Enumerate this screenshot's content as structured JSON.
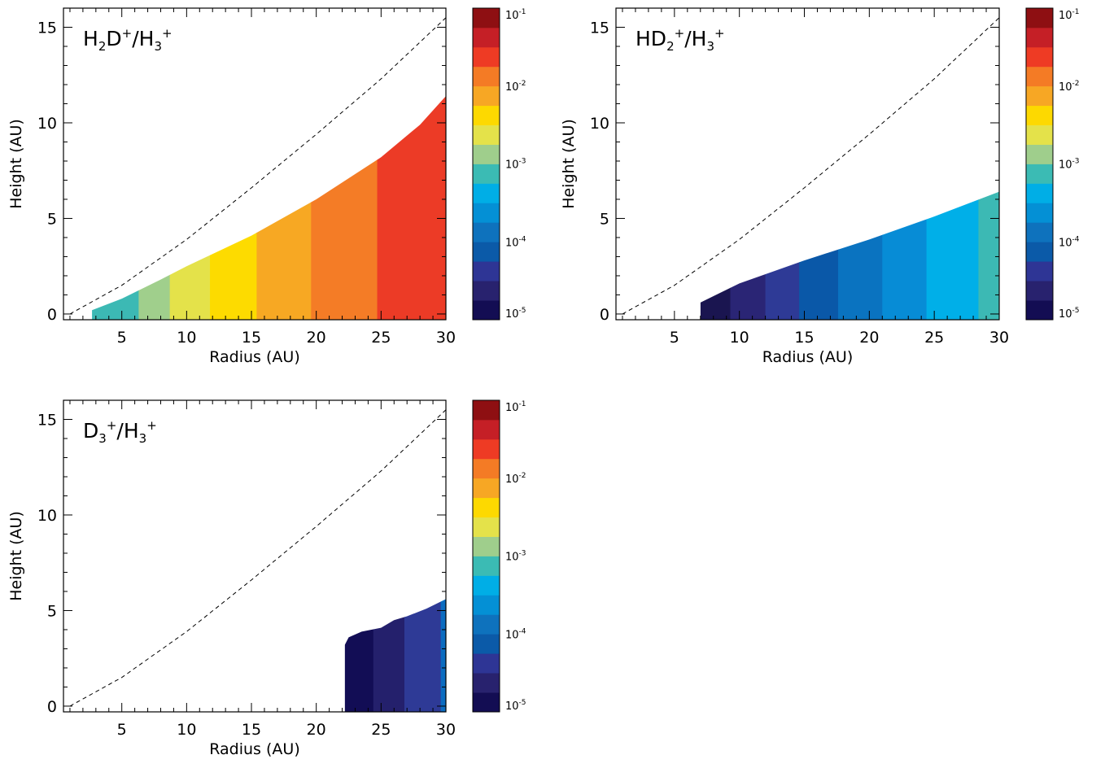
{
  "chart_data": [
    {
      "type": "heatmap",
      "panel_label": {
        "base": "H",
        "sub1": "2",
        "mid": "D",
        "sup1": "+",
        "slash": "/",
        "base2": "H",
        "sub2": "3",
        "sup2": "+"
      },
      "xlabel": "Radius (AU)",
      "ylabel": "Height (AU)",
      "xlim": [
        0.5,
        30
      ],
      "ylim": [
        -0.3,
        16
      ],
      "xticks": [
        "5",
        "10",
        "15",
        "20",
        "25",
        "30"
      ],
      "yticks": [
        "0",
        "5",
        "10",
        "15"
      ],
      "dashed_line": {
        "x": [
          1,
          5,
          10,
          15,
          20,
          25,
          30
        ],
        "y": [
          0,
          1.5,
          3.9,
          6.6,
          9.4,
          12.3,
          15.5
        ]
      },
      "region_top": {
        "x": [
          2.7,
          5,
          8,
          10,
          15,
          20,
          25,
          28,
          30
        ],
        "y": [
          0.2,
          0.8,
          1.8,
          2.5,
          4.1,
          6.0,
          8.2,
          9.9,
          11.4
        ]
      },
      "bands": [
        {
          "x_from": 2.7,
          "x_to": 6.3,
          "log_ratio": -3.0,
          "color": "#3CB9B4"
        },
        {
          "x_from": 6.3,
          "x_to": 8.7,
          "log_ratio": -2.9,
          "color": "#A0CF8C"
        },
        {
          "x_from": 8.7,
          "x_to": 11.8,
          "log_ratio": -2.6,
          "color": "#E4E24A"
        },
        {
          "x_from": 11.8,
          "x_to": 15.4,
          "log_ratio": -2.4,
          "color": "#FDDB00"
        },
        {
          "x_from": 15.4,
          "x_to": 19.6,
          "log_ratio": -2.2,
          "color": "#F7A823"
        },
        {
          "x_from": 19.6,
          "x_to": 24.7,
          "log_ratio": -2.0,
          "color": "#F47C26"
        },
        {
          "x_from": 24.7,
          "x_to": 30,
          "log_ratio": -1.6,
          "color": "#EC3B26"
        }
      ]
    },
    {
      "type": "heatmap",
      "panel_label": {
        "base": "HD",
        "sub1": "2",
        "sup1": "+",
        "slash": "/",
        "base2": "H",
        "sub2": "3",
        "sup2": "+"
      },
      "xlabel": "Radius (AU)",
      "ylabel": "Height (AU)",
      "xlim": [
        0.5,
        30
      ],
      "ylim": [
        -0.3,
        16
      ],
      "xticks": [
        "5",
        "10",
        "15",
        "20",
        "25",
        "30"
      ],
      "yticks": [
        "0",
        "5",
        "10",
        "15"
      ],
      "dashed_line": {
        "x": [
          1,
          5,
          10,
          15,
          20,
          25,
          30
        ],
        "y": [
          0,
          1.5,
          3.9,
          6.6,
          9.4,
          12.3,
          15.5
        ]
      },
      "region_top": {
        "x": [
          7,
          10,
          15,
          20,
          25,
          30
        ],
        "y": [
          0.6,
          1.6,
          2.8,
          3.9,
          5.1,
          6.4
        ]
      },
      "bands": [
        {
          "x_from": 7.0,
          "x_to": 9.3,
          "log_ratio": -5.0,
          "color": "#1A1550"
        },
        {
          "x_from": 9.3,
          "x_to": 12.0,
          "log_ratio": -4.8,
          "color": "#2A2575"
        },
        {
          "x_from": 12.0,
          "x_to": 14.6,
          "log_ratio": -4.6,
          "color": "#2E3A96"
        },
        {
          "x_from": 14.6,
          "x_to": 17.6,
          "log_ratio": -4.3,
          "color": "#0A58A8"
        },
        {
          "x_from": 17.6,
          "x_to": 21.0,
          "log_ratio": -4.0,
          "color": "#0A73C0"
        },
        {
          "x_from": 21.0,
          "x_to": 24.4,
          "log_ratio": -3.8,
          "color": "#078CD6"
        },
        {
          "x_from": 24.4,
          "x_to": 28.4,
          "log_ratio": -3.5,
          "color": "#00AFE8"
        },
        {
          "x_from": 28.4,
          "x_to": 30,
          "log_ratio": -3.0,
          "color": "#3CB9B4"
        }
      ]
    },
    {
      "type": "heatmap",
      "panel_label": {
        "base": "D",
        "sub1": "3",
        "sup1": "+",
        "slash": "/",
        "base2": "H",
        "sub2": "3",
        "sup2": "+"
      },
      "xlabel": "Radius (AU)",
      "ylabel": "Height (AU)",
      "xlim": [
        0.5,
        30
      ],
      "ylim": [
        -0.3,
        16
      ],
      "xticks": [
        "5",
        "10",
        "15",
        "20",
        "25",
        "30"
      ],
      "yticks": [
        "0",
        "5",
        "10",
        "15"
      ],
      "dashed_line": {
        "x": [
          1,
          5,
          10,
          15,
          20,
          25,
          30
        ],
        "y": [
          0,
          1.5,
          3.9,
          6.6,
          9.4,
          12.3,
          15.5
        ]
      },
      "region_top": {
        "x": [
          22.2,
          22.5,
          23.5,
          25,
          26,
          27,
          28.5,
          30
        ],
        "y": [
          3.2,
          3.6,
          3.9,
          4.1,
          4.5,
          4.7,
          5.1,
          5.6
        ]
      },
      "bands": [
        {
          "x_from": 22.2,
          "x_to": 24.4,
          "log_ratio": -5.0,
          "color": "#120D55"
        },
        {
          "x_from": 24.4,
          "x_to": 26.8,
          "log_ratio": -4.8,
          "color": "#24206C"
        },
        {
          "x_from": 26.8,
          "x_to": 29.6,
          "log_ratio": -4.6,
          "color": "#2E3A96"
        },
        {
          "x_from": 29.6,
          "x_to": 30,
          "log_ratio": -4.1,
          "color": "#0B6CC0"
        }
      ]
    }
  ],
  "colorbar": {
    "scale": "log",
    "range": [
      1e-05,
      0.1
    ],
    "colors": [
      "#130D53",
      "#28226E",
      "#2E3595",
      "#0B5AA8",
      "#0E72BD",
      "#0490D5",
      "#00AEE6",
      "#3BBBB4",
      "#9FCE8C",
      "#E4E24A",
      "#FDD900",
      "#F7A724",
      "#F47B25",
      "#EE3B24",
      "#C51F26",
      "#8E0F12"
    ],
    "ticks": [
      {
        "base": "10",
        "exp": "-5",
        "log": -5
      },
      {
        "base": "10",
        "exp": "-4",
        "log": -4
      },
      {
        "base": "10",
        "exp": "-3",
        "log": -3
      },
      {
        "base": "10",
        "exp": "-2",
        "log": -2
      },
      {
        "base": "10",
        "exp": "-1",
        "log": -1
      }
    ]
  }
}
